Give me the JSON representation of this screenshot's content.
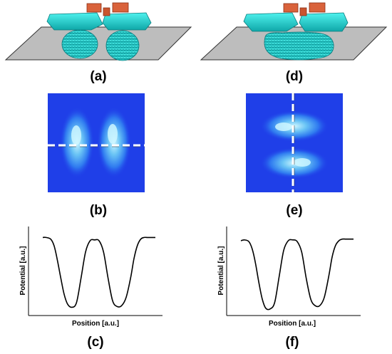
{
  "panels": {
    "a": {
      "label": "(a)"
    },
    "b": {
      "label": "(b)"
    },
    "c": {
      "label": "(c)",
      "xlabel": "Position [a.u.]",
      "ylabel": "Potential [a.u.]"
    },
    "d": {
      "label": "(d)"
    },
    "e": {
      "label": "(e)"
    },
    "f": {
      "label": "(f)",
      "xlabel": "Position [a.u.]",
      "ylabel": "Potential [a.u.]"
    }
  },
  "colors": {
    "gate": "#d9623b",
    "electrode": "#25d3cf",
    "substrate": "#b8b8b8",
    "map_background": "#1f3fe8",
    "map_highlight": "#9de8f0",
    "cut_line": "#ffffff",
    "curve": "#000000"
  },
  "chart_data": [
    {
      "type": "line",
      "panel": "c",
      "xlabel": "Position [a.u.]",
      "ylabel": "Potential [a.u.]",
      "x": [
        0,
        0.03,
        0.07,
        0.1,
        0.13,
        0.16,
        0.19,
        0.22,
        0.26,
        0.3,
        0.34,
        0.38,
        0.42,
        0.46,
        0.5,
        0.54,
        0.58,
        0.62,
        0.66,
        0.7,
        0.74,
        0.78,
        0.81,
        0.84,
        0.87,
        0.9,
        0.93,
        0.97,
        1
      ],
      "y": [
        0.9,
        0.9,
        0.88,
        0.8,
        0.62,
        0.4,
        0.2,
        0.08,
        0.04,
        0.1,
        0.4,
        0.72,
        0.86,
        0.87,
        0.86,
        0.72,
        0.4,
        0.12,
        0.05,
        0.06,
        0.16,
        0.4,
        0.64,
        0.8,
        0.88,
        0.9,
        0.9,
        0.9,
        0.9
      ],
      "xlim": [
        0,
        1
      ],
      "ylim": [
        0,
        1
      ]
    },
    {
      "type": "line",
      "panel": "f",
      "xlabel": "Position [a.u.]",
      "ylabel": "Potential [a.u.]",
      "x": [
        0,
        0.03,
        0.07,
        0.1,
        0.13,
        0.16,
        0.19,
        0.22,
        0.26,
        0.3,
        0.34,
        0.38,
        0.42,
        0.46,
        0.5,
        0.54,
        0.58,
        0.62,
        0.66,
        0.7,
        0.74,
        0.78,
        0.81,
        0.84,
        0.87,
        0.9,
        0.93,
        0.97,
        1
      ],
      "y": [
        0.86,
        0.87,
        0.85,
        0.76,
        0.58,
        0.34,
        0.14,
        0.03,
        0.02,
        0.1,
        0.42,
        0.74,
        0.86,
        0.87,
        0.85,
        0.72,
        0.4,
        0.14,
        0.06,
        0.06,
        0.16,
        0.42,
        0.66,
        0.8,
        0.86,
        0.88,
        0.88,
        0.88,
        0.88
      ],
      "xlim": [
        0,
        1
      ],
      "ylim": [
        0,
        1
      ]
    }
  ]
}
